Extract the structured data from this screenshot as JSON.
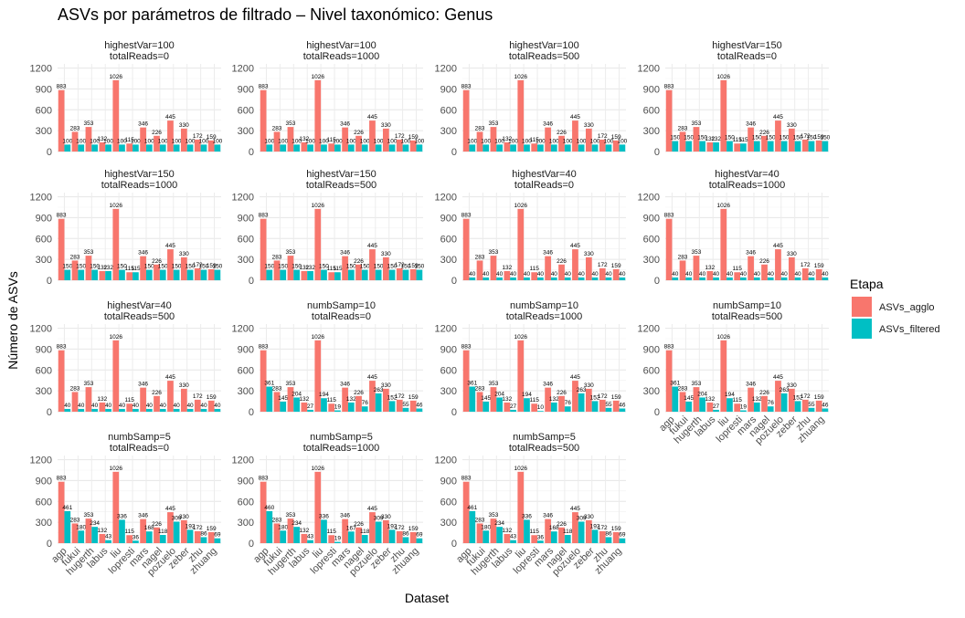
{
  "title": "ASVs por parámetros de filtrado – Nivel taxonómico: Genus",
  "xlabel": "Dataset",
  "ylabel": "Número de ASVs",
  "legend": {
    "title": "Etapa",
    "items": [
      {
        "name": "ASVs_agglo",
        "color": "#F8766D"
      },
      {
        "name": "ASVs_filtered",
        "color": "#00BFC4"
      }
    ]
  },
  "chart_data": {
    "type": "bar",
    "categories": [
      "agp",
      "fukui",
      "hugerth",
      "labus",
      "liu",
      "lopresti",
      "mars",
      "nagel",
      "pozuelo",
      "zeber",
      "zhu",
      "zhuang"
    ],
    "ylim": [
      0,
      1260
    ],
    "yticks": [
      "0",
      "300",
      "600",
      "900",
      "1200"
    ],
    "grid": true,
    "legend_position": "right",
    "agglo": [
      883,
      283,
      353,
      132,
      1026,
      115,
      346,
      226,
      445,
      330,
      172,
      159
    ],
    "panels": [
      {
        "line1": "highestVar=100",
        "line2": "totalReads=0",
        "filtered": [
          100,
          100,
          100,
          100,
          100,
          100,
          100,
          100,
          100,
          100,
          100,
          100
        ]
      },
      {
        "line1": "highestVar=100",
        "line2": "totalReads=1000",
        "filtered": [
          100,
          100,
          100,
          100,
          100,
          100,
          100,
          100,
          100,
          100,
          100,
          100
        ]
      },
      {
        "line1": "highestVar=100",
        "line2": "totalReads=500",
        "filtered": [
          100,
          100,
          100,
          100,
          100,
          100,
          100,
          100,
          100,
          100,
          100,
          100
        ]
      },
      {
        "line1": "highestVar=150",
        "line2": "totalReads=0",
        "filtered": [
          150,
          150,
          150,
          132,
          150,
          115,
          150,
          150,
          150,
          150,
          150,
          150
        ]
      },
      {
        "line1": "highestVar=150",
        "line2": "totalReads=1000",
        "filtered": [
          150,
          150,
          150,
          132,
          150,
          115,
          150,
          150,
          150,
          150,
          150,
          150
        ]
      },
      {
        "line1": "highestVar=150",
        "line2": "totalReads=500",
        "filtered": [
          150,
          150,
          150,
          132,
          150,
          115,
          150,
          150,
          150,
          150,
          150,
          150
        ]
      },
      {
        "line1": "highestVar=40",
        "line2": "totalReads=0",
        "filtered": [
          40,
          40,
          40,
          40,
          40,
          40,
          40,
          40,
          40,
          40,
          40,
          40
        ]
      },
      {
        "line1": "highestVar=40",
        "line2": "totalReads=1000",
        "filtered": [
          40,
          40,
          40,
          40,
          40,
          40,
          40,
          40,
          40,
          40,
          40,
          40
        ]
      },
      {
        "line1": "highestVar=40",
        "line2": "totalReads=500",
        "filtered": [
          40,
          40,
          40,
          40,
          40,
          40,
          40,
          40,
          40,
          40,
          40,
          40
        ]
      },
      {
        "line1": "numbSamp=10",
        "line2": "totalReads=0",
        "filtered": [
          361,
          145,
          204,
          27,
          194,
          19,
          132,
          76,
          263,
          152,
          55,
          46
        ]
      },
      {
        "line1": "numbSamp=10",
        "line2": "totalReads=1000",
        "filtered": [
          361,
          145,
          204,
          27,
          194,
          10,
          132,
          76,
          263,
          152,
          55,
          46
        ]
      },
      {
        "line1": "numbSamp=10",
        "line2": "totalReads=500",
        "filtered": [
          361,
          145,
          204,
          27,
          194,
          19,
          132,
          76,
          263,
          152,
          55,
          46
        ]
      },
      {
        "line1": "numbSamp=5",
        "line2": "totalReads=0",
        "filtered": [
          461,
          180,
          234,
          43,
          336,
          36,
          168,
          118,
          309,
          192,
          86,
          69
        ]
      },
      {
        "line1": "numbSamp=5",
        "line2": "totalReads=1000",
        "filtered": [
          460,
          180,
          234,
          43,
          336,
          19,
          167,
          118,
          309,
          192,
          86,
          69
        ]
      },
      {
        "line1": "numbSamp=5",
        "line2": "totalReads=500",
        "filtered": [
          461,
          180,
          234,
          43,
          336,
          36,
          168,
          118,
          309,
          192,
          86,
          69
        ]
      }
    ]
  }
}
